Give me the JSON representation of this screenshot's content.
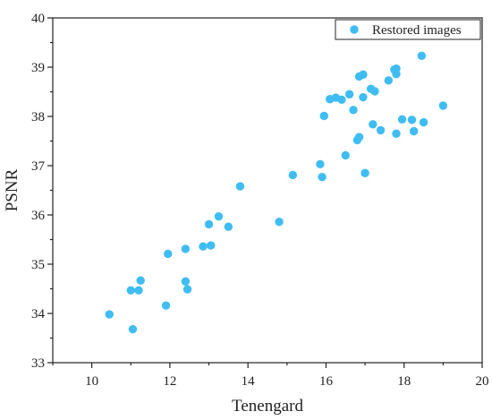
{
  "chart_data": {
    "type": "scatter",
    "xlabel": "Tenengard",
    "ylabel": "PSNR",
    "xlim": [
      9,
      20
    ],
    "ylim": [
      33,
      40
    ],
    "xticks": [
      10,
      12,
      14,
      16,
      18,
      20
    ],
    "yticks": [
      33,
      34,
      35,
      36,
      37,
      38,
      39,
      40
    ],
    "grid": false,
    "legend_position": "top-right",
    "series": [
      {
        "name": "Restored images",
        "color": "#3fbdf2",
        "points": [
          [
            10.45,
            33.98
          ],
          [
            11.0,
            34.47
          ],
          [
            11.05,
            33.68
          ],
          [
            11.2,
            34.47
          ],
          [
            11.25,
            34.67
          ],
          [
            11.9,
            34.16
          ],
          [
            11.95,
            35.21
          ],
          [
            12.4,
            35.31
          ],
          [
            12.4,
            34.65
          ],
          [
            12.45,
            34.49
          ],
          [
            12.85,
            35.36
          ],
          [
            13.0,
            35.81
          ],
          [
            13.05,
            35.38
          ],
          [
            13.25,
            35.97
          ],
          [
            13.5,
            35.76
          ],
          [
            13.8,
            36.58
          ],
          [
            14.8,
            35.86
          ],
          [
            15.15,
            36.81
          ],
          [
            15.85,
            37.03
          ],
          [
            15.9,
            36.77
          ],
          [
            15.95,
            38.01
          ],
          [
            16.1,
            38.35
          ],
          [
            16.25,
            38.38
          ],
          [
            16.4,
            38.34
          ],
          [
            16.5,
            37.21
          ],
          [
            16.6,
            38.45
          ],
          [
            16.7,
            38.13
          ],
          [
            16.8,
            37.52
          ],
          [
            16.85,
            37.58
          ],
          [
            16.85,
            38.81
          ],
          [
            16.95,
            38.39
          ],
          [
            16.95,
            38.85
          ],
          [
            17.0,
            36.85
          ],
          [
            17.15,
            38.56
          ],
          [
            17.2,
            37.84
          ],
          [
            17.25,
            38.51
          ],
          [
            17.4,
            37.72
          ],
          [
            17.6,
            38.73
          ],
          [
            17.75,
            38.95
          ],
          [
            17.8,
            38.86
          ],
          [
            17.8,
            38.97
          ],
          [
            17.8,
            37.65
          ],
          [
            17.95,
            37.94
          ],
          [
            18.2,
            37.93
          ],
          [
            18.25,
            37.7
          ],
          [
            18.45,
            39.23
          ],
          [
            18.5,
            37.88
          ],
          [
            19.0,
            38.22
          ]
        ]
      }
    ]
  }
}
